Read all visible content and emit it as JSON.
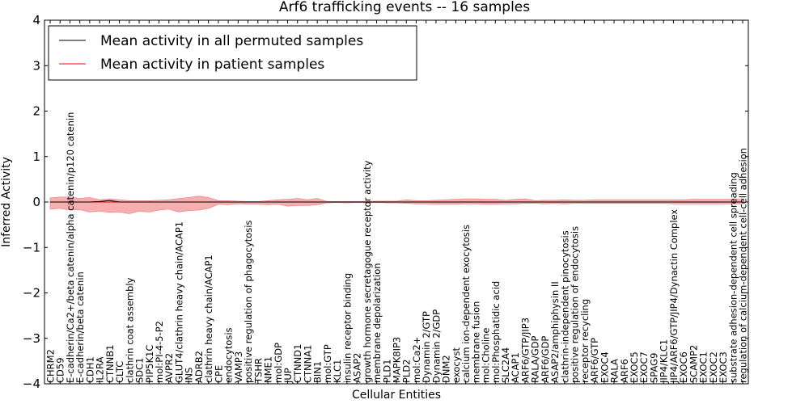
{
  "chart_data": {
    "type": "line",
    "title": "Arf6 trafficking events -- 16 samples",
    "xlabel": "Cellular Entities",
    "ylabel": "Inferred Activity",
    "ylim": [
      -4,
      4
    ],
    "yticks": [
      "−4",
      "−3",
      "−2",
      "−1",
      "0",
      "1",
      "2",
      "3",
      "4"
    ],
    "grid": false,
    "legend_position": "top-left",
    "colors": {
      "permuted": "#000000",
      "patient": "#ff0000",
      "patient_band": "#f4a0a0",
      "permuted_band": "#c8c8c8"
    },
    "categories": [
      "CHRM2",
      "CD59",
      "E-cadherin/Ca2+/beta catenin/alpha catenin/p120 catenin",
      "E-cadherin/beta catenin",
      "CDH1",
      "IL2RA",
      "CTNNB1",
      "CLTC",
      "clathrin coat assembly",
      "SDC1",
      "PIP5K1C",
      "mol:PI-4-5-P2",
      "AVPR2",
      "GLUT4/clathrin heavy chain/ACAP1",
      "INS",
      "ADRB2",
      "clathrin heavy chain/ACAP1",
      "CPE",
      "endocytosis",
      "VAMP3",
      "positive regulation of phagocytosis",
      "TSHR",
      "NME1",
      "mol:GDP",
      "JUP",
      "CTNND1",
      "CTNNA1",
      "BIN1",
      "mol:GTP",
      "KLC1",
      "insulin receptor binding",
      "ASAP2",
      "growth hormone secretagogue receptor activity",
      "membrane depolarization",
      "PLD1",
      "MAPK8IP3",
      "PLD2",
      "mol:Ca2+",
      "Dynamin 2/GTP",
      "Dynamin 2/GDP",
      "DNM2",
      "exocyst",
      "calcium ion-dependent exocytosis",
      "membrane fusion",
      "mol:Choline",
      "mol:Phosphatidic acid",
      "SLC2A4",
      "ACAP1",
      "ARF6/GTP/JIP3",
      "RALA/GDP",
      "ARF6/GDP",
      "ASAP2/amphiphysin II",
      "clathrin-independent pinocytosis",
      "positive regulation of endocytosis",
      "receptor recycling",
      "ARF6/GTP",
      "EXOC4",
      "RALA",
      "ARF6",
      "EXOC5",
      "EXOC7",
      "SPAG9",
      "JIP4/KLC1",
      "JIP4/ARF6/GTP/JIP4/Dynactin Complex",
      "EXOC6",
      "SCAMP2",
      "EXOC1",
      "EXOC2",
      "EXOC3",
      "substrate adhesion-dependent cell spreading",
      "regulation of calcium-dependent cell-cell adhesion"
    ],
    "series": [
      {
        "name": "Mean activity in all permuted samples",
        "values": [
          0.0,
          0.0,
          0.0,
          0.0,
          0.0,
          0.01,
          0.03,
          0.0,
          0.0,
          0.0,
          0.0,
          0.0,
          0.0,
          0.0,
          0.0,
          0.0,
          0.0,
          0.0,
          0.0,
          0.0,
          0.0,
          0.0,
          0.0,
          0.0,
          0.0,
          0.0,
          0.0,
          0.0,
          0.0,
          0.0,
          0.0,
          0.0,
          0.0,
          0.0,
          0.0,
          0.0,
          0.0,
          0.0,
          0.0,
          0.0,
          0.0,
          0.0,
          0.0,
          0.0,
          0.0,
          0.0,
          0.0,
          0.0,
          0.0,
          0.0,
          0.0,
          0.0,
          0.0,
          0.0,
          0.0,
          0.0,
          0.0,
          0.0,
          0.0,
          0.0,
          0.0,
          0.0,
          0.0,
          0.0,
          0.0,
          0.0,
          0.0,
          0.0,
          0.0,
          0.0,
          0.0
        ]
      },
      {
        "name": "Mean activity in patient samples",
        "values": [
          0.0,
          0.0,
          0.0,
          0.0,
          0.0,
          0.0,
          0.0,
          0.0,
          0.0,
          0.0,
          0.0,
          0.0,
          0.0,
          0.0,
          0.0,
          0.0,
          0.0,
          0.0,
          0.0,
          0.0,
          0.0,
          0.0,
          0.0,
          0.0,
          0.0,
          0.0,
          0.0,
          0.0,
          0.0,
          0.0,
          0.0,
          0.0,
          0.0,
          0.0,
          0.0,
          0.0,
          0.0,
          0.0,
          0.0,
          0.0,
          0.0,
          0.0,
          0.0,
          0.0,
          0.0,
          0.0,
          0.0,
          0.0,
          0.0,
          0.0,
          0.0,
          0.0,
          0.0,
          0.0,
          0.0,
          0.0,
          0.0,
          0.0,
          0.0,
          0.0,
          0.0,
          0.0,
          0.0,
          0.0,
          0.0,
          0.0,
          0.0,
          0.0,
          0.0,
          0.0,
          0.0
        ],
        "band_upper": [
          0.09,
          0.11,
          0.11,
          0.08,
          0.1,
          0.05,
          0.07,
          0.05,
          0.03,
          0.03,
          0.03,
          0.04,
          0.05,
          0.08,
          0.1,
          0.13,
          0.1,
          0.03,
          0.03,
          0.02,
          0.01,
          0.01,
          0.03,
          0.05,
          0.06,
          0.08,
          0.05,
          0.08,
          0.01,
          0.01,
          0.01,
          0.01,
          0.01,
          0.02,
          0.02,
          0.02,
          0.05,
          0.03,
          0.03,
          0.04,
          0.05,
          0.06,
          0.07,
          0.07,
          0.06,
          0.06,
          0.04,
          0.06,
          0.07,
          0.03,
          0.04,
          0.04,
          0.05,
          0.04,
          0.04,
          0.05,
          0.05,
          0.05,
          0.05,
          0.05,
          0.05,
          0.05,
          0.05,
          0.05,
          0.05,
          0.06,
          0.06,
          0.06,
          0.06,
          0.06,
          0.06
        ],
        "band_lower": [
          -0.16,
          -0.14,
          -0.18,
          -0.17,
          -0.22,
          -0.2,
          -0.23,
          -0.22,
          -0.26,
          -0.2,
          -0.22,
          -0.18,
          -0.16,
          -0.22,
          -0.19,
          -0.18,
          -0.14,
          -0.05,
          -0.06,
          -0.04,
          -0.05,
          -0.05,
          -0.06,
          -0.05,
          -0.09,
          -0.08,
          -0.08,
          -0.06,
          -0.02,
          -0.01,
          -0.02,
          -0.01,
          -0.02,
          -0.01,
          -0.02,
          -0.02,
          -0.03,
          -0.04,
          -0.04,
          -0.05,
          -0.05,
          -0.05,
          -0.04,
          -0.04,
          -0.05,
          -0.05,
          -0.04,
          -0.04,
          -0.03,
          -0.03,
          -0.04,
          -0.03,
          -0.04,
          -0.03,
          -0.03,
          -0.03,
          -0.03,
          -0.03,
          -0.03,
          -0.03,
          -0.03,
          -0.03,
          -0.03,
          -0.04,
          -0.04,
          -0.04,
          -0.04,
          -0.04,
          -0.04,
          -0.04,
          -0.04
        ]
      }
    ]
  }
}
